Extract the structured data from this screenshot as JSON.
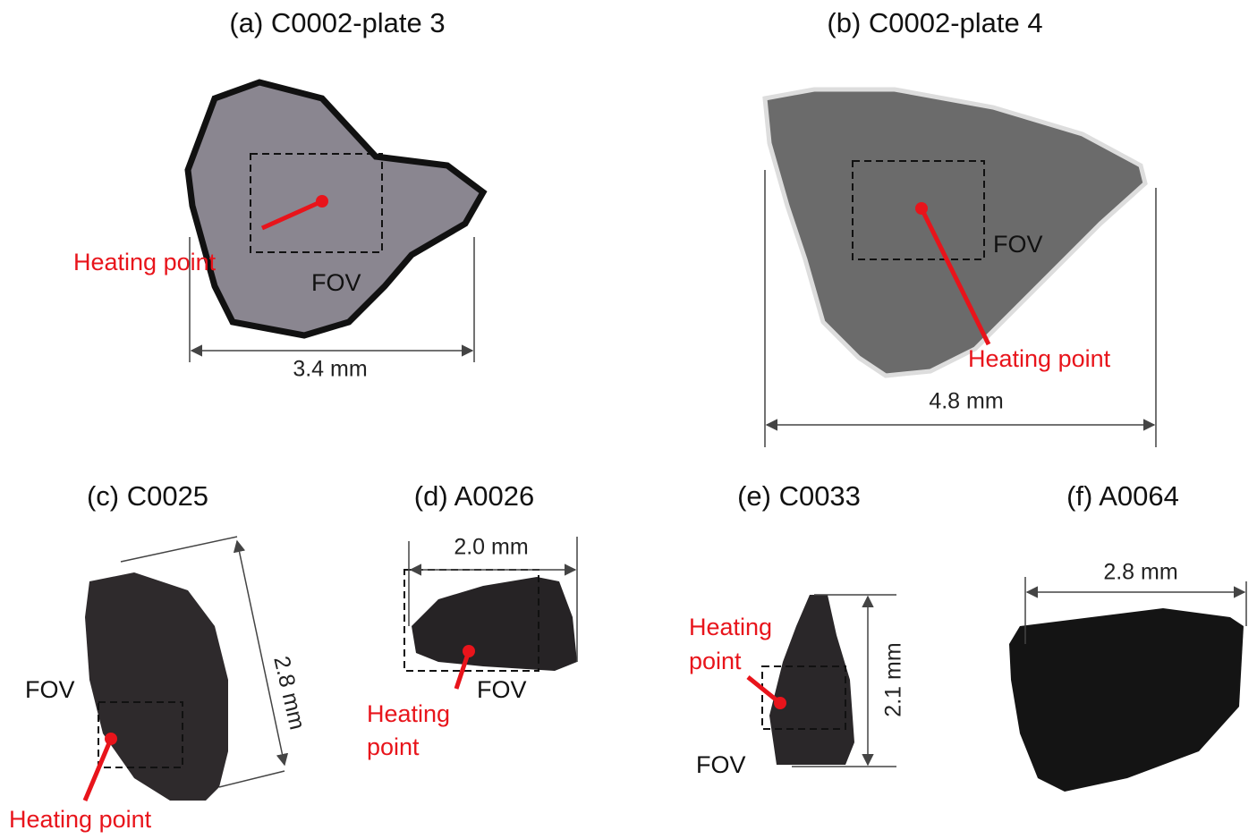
{
  "panels": [
    {
      "title": "(a) C0002-plate 3",
      "heating_point": [
        "Heating point"
      ],
      "fov": "FOV",
      "scale": "3.4 mm"
    },
    {
      "title": "(b) C0002-plate 4",
      "heating_point": [
        "Heating point"
      ],
      "fov": "FOV",
      "scale": "4.8 mm"
    },
    {
      "title": "(c) C0025",
      "heating_point": [
        "Heating point"
      ],
      "fov": "FOV",
      "scale": "2.8 mm"
    },
    {
      "title": "(d) A0026",
      "heating_point": [
        "Heating",
        "point"
      ],
      "fov": "FOV",
      "scale": "2.0 mm"
    },
    {
      "title": "(e) C0033",
      "heating_point": [
        "Heating",
        "point"
      ],
      "fov": "FOV",
      "scale": "2.1 mm"
    },
    {
      "title": "(f) A0064",
      "scale": "2.8 mm"
    }
  ]
}
